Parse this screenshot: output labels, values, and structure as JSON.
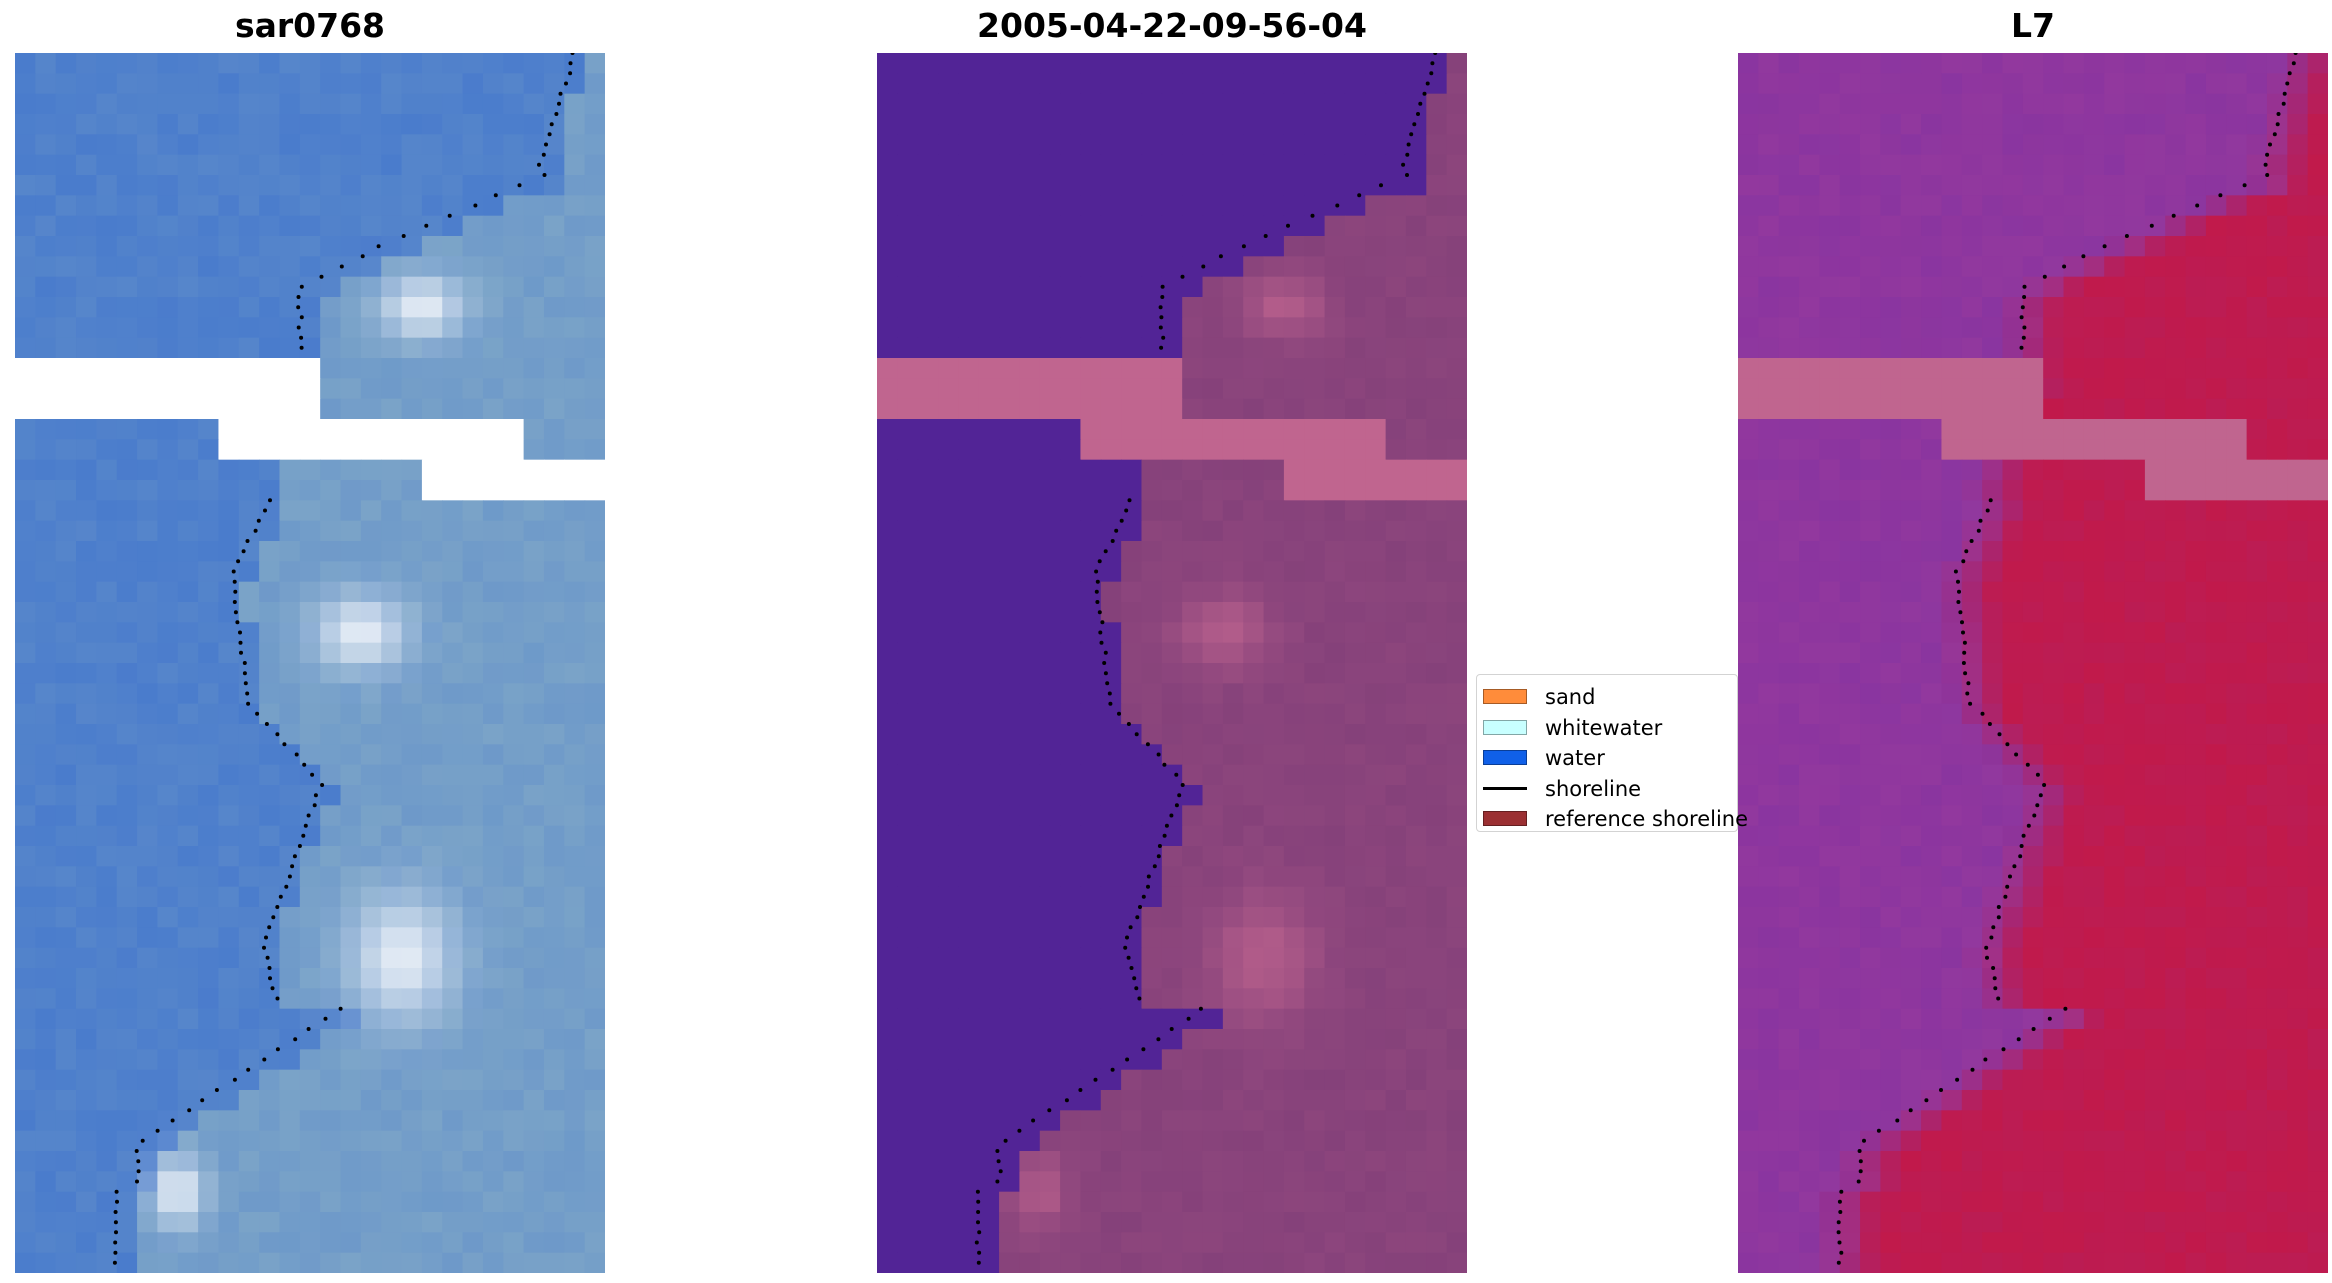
{
  "panels": [
    {
      "title": "sar0768",
      "palette": "rgb"
    },
    {
      "title": "2005-04-22-09-56-04",
      "palette": "classified"
    },
    {
      "title": "L7",
      "palette": "mndwi"
    }
  ],
  "legend": {
    "items": [
      {
        "label": "sand",
        "color": "#ff8c3a",
        "kind": "patch"
      },
      {
        "label": "whitewater",
        "color": "#c8ffff",
        "kind": "patch"
      },
      {
        "label": "water",
        "color": "#1060e8",
        "kind": "patch"
      },
      {
        "label": "shoreline",
        "color": "#000000",
        "kind": "line"
      },
      {
        "label": "reference shoreline",
        "color": "#9b3033",
        "kind": "patch"
      }
    ]
  },
  "colors": {
    "water_rgb": "#4a7ccc",
    "land_rgb": "#7aa3c8",
    "bright_rgb": "#f0f4fa",
    "class_water": "#522496",
    "class_land": "#85417a",
    "nodata_class": "#c0658f",
    "nodata_rgb": "#ffffff",
    "mndwi_water": "#8a35a0",
    "mndwi_land": "#c41846",
    "shoreline_dots": "#000000"
  }
}
